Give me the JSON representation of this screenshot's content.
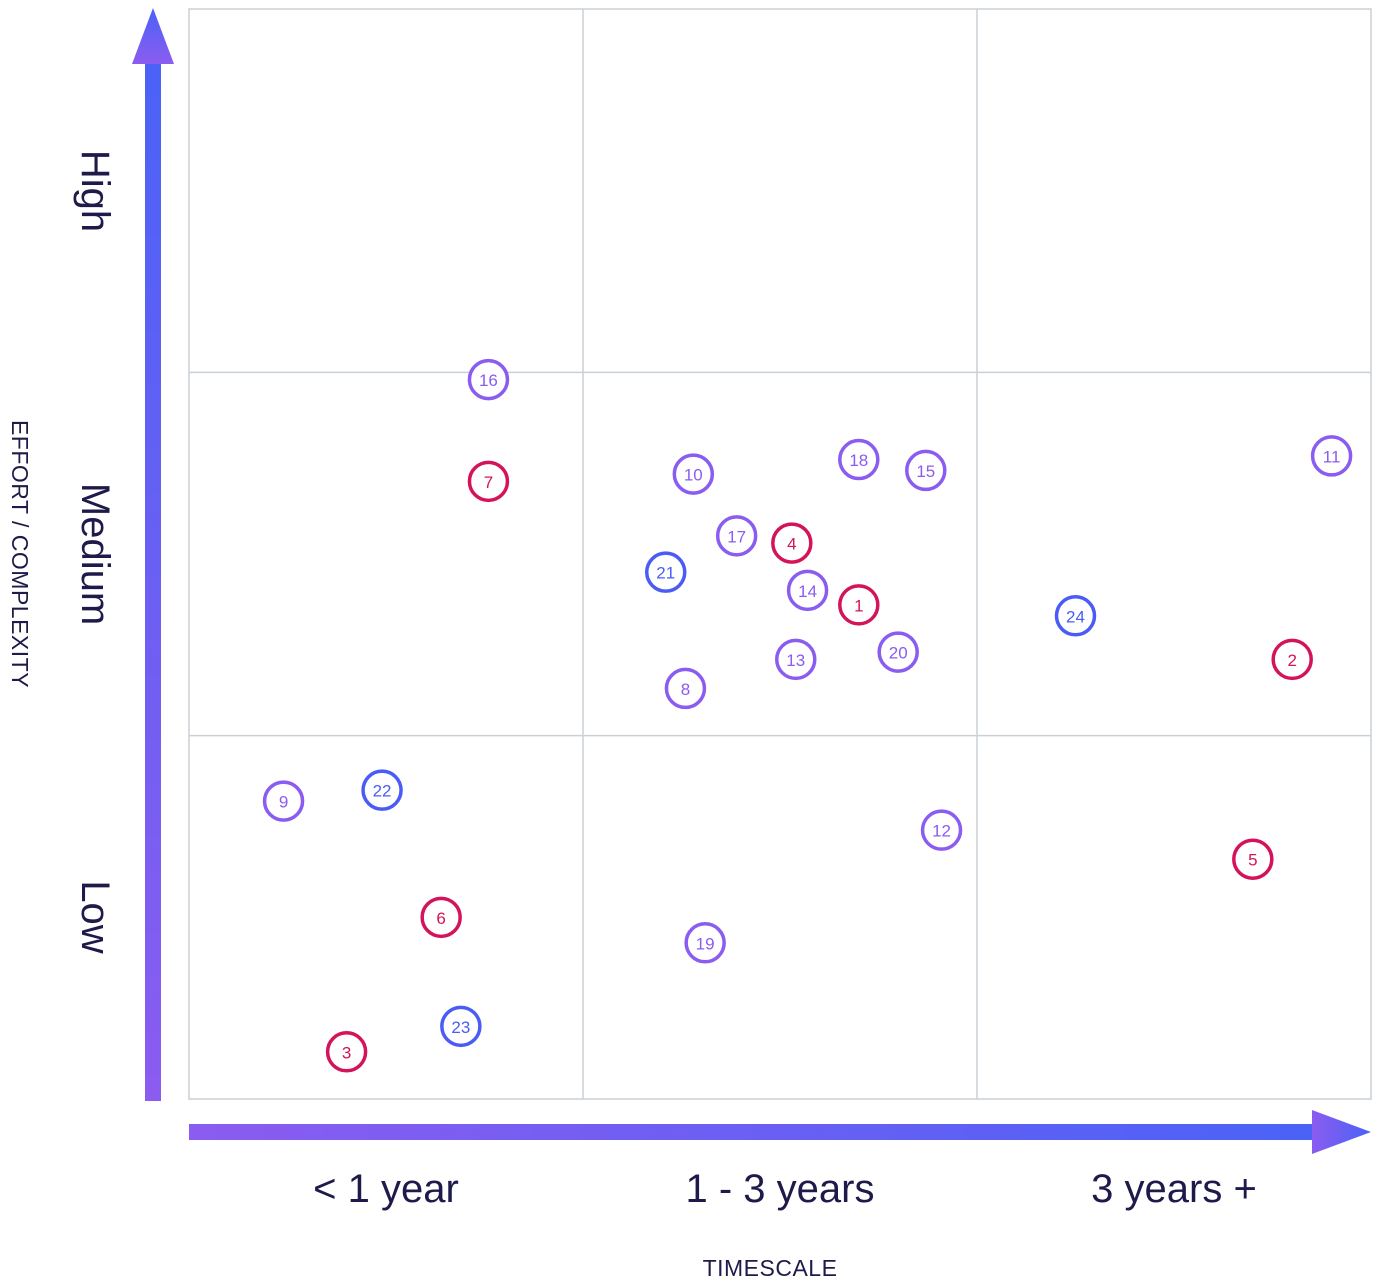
{
  "chart_data": {
    "type": "scatter",
    "title": "",
    "xlabel": "TIMESCALE",
    "ylabel": "EFFORT / COMPLEXITY",
    "x_categories": [
      "< 1 year",
      "1 - 3 years",
      "3 years +"
    ],
    "y_categories": [
      "Low",
      "Medium",
      "High"
    ],
    "xlim": [
      0,
      3
    ],
    "ylim": [
      0,
      3
    ],
    "grid": true,
    "legend": "none",
    "colors": {
      "red": "#d4145a",
      "purple": "#8b5cf0",
      "blue": "#4a5cf5",
      "grid": "#c9d0d6",
      "axis_start": "#8b5cf0",
      "axis_end": "#4a62f7",
      "text": "#1e1a4a"
    },
    "points": [
      {
        "label": "1",
        "x": 1.7,
        "y": 1.36,
        "color": "red"
      },
      {
        "label": "2",
        "x": 2.8,
        "y": 1.21,
        "color": "red"
      },
      {
        "label": "3",
        "x": 0.4,
        "y": 0.13,
        "color": "red"
      },
      {
        "label": "4",
        "x": 1.53,
        "y": 1.53,
        "color": "red"
      },
      {
        "label": "5",
        "x": 2.7,
        "y": 0.66,
        "color": "red"
      },
      {
        "label": "6",
        "x": 0.64,
        "y": 0.5,
        "color": "red"
      },
      {
        "label": "7",
        "x": 0.76,
        "y": 1.7,
        "color": "red"
      },
      {
        "label": "8",
        "x": 1.26,
        "y": 1.13,
        "color": "purple"
      },
      {
        "label": "9",
        "x": 0.24,
        "y": 0.82,
        "color": "purple"
      },
      {
        "label": "10",
        "x": 1.28,
        "y": 1.72,
        "color": "purple"
      },
      {
        "label": "11",
        "x": 2.9,
        "y": 1.77,
        "color": "purple"
      },
      {
        "label": "12",
        "x": 1.91,
        "y": 0.74,
        "color": "purple"
      },
      {
        "label": "13",
        "x": 1.54,
        "y": 1.21,
        "color": "purple"
      },
      {
        "label": "14",
        "x": 1.57,
        "y": 1.4,
        "color": "purple"
      },
      {
        "label": "15",
        "x": 1.87,
        "y": 1.73,
        "color": "purple"
      },
      {
        "label": "16",
        "x": 0.76,
        "y": 1.98,
        "color": "purple"
      },
      {
        "label": "17",
        "x": 1.39,
        "y": 1.55,
        "color": "purple"
      },
      {
        "label": "18",
        "x": 1.7,
        "y": 1.76,
        "color": "purple"
      },
      {
        "label": "19",
        "x": 1.31,
        "y": 0.43,
        "color": "purple"
      },
      {
        "label": "20",
        "x": 1.8,
        "y": 1.23,
        "color": "purple"
      },
      {
        "label": "21",
        "x": 1.21,
        "y": 1.45,
        "color": "blue"
      },
      {
        "label": "22",
        "x": 0.49,
        "y": 0.85,
        "color": "blue"
      },
      {
        "label": "23",
        "x": 0.69,
        "y": 0.2,
        "color": "blue"
      },
      {
        "label": "24",
        "x": 2.25,
        "y": 1.33,
        "color": "blue"
      }
    ]
  }
}
